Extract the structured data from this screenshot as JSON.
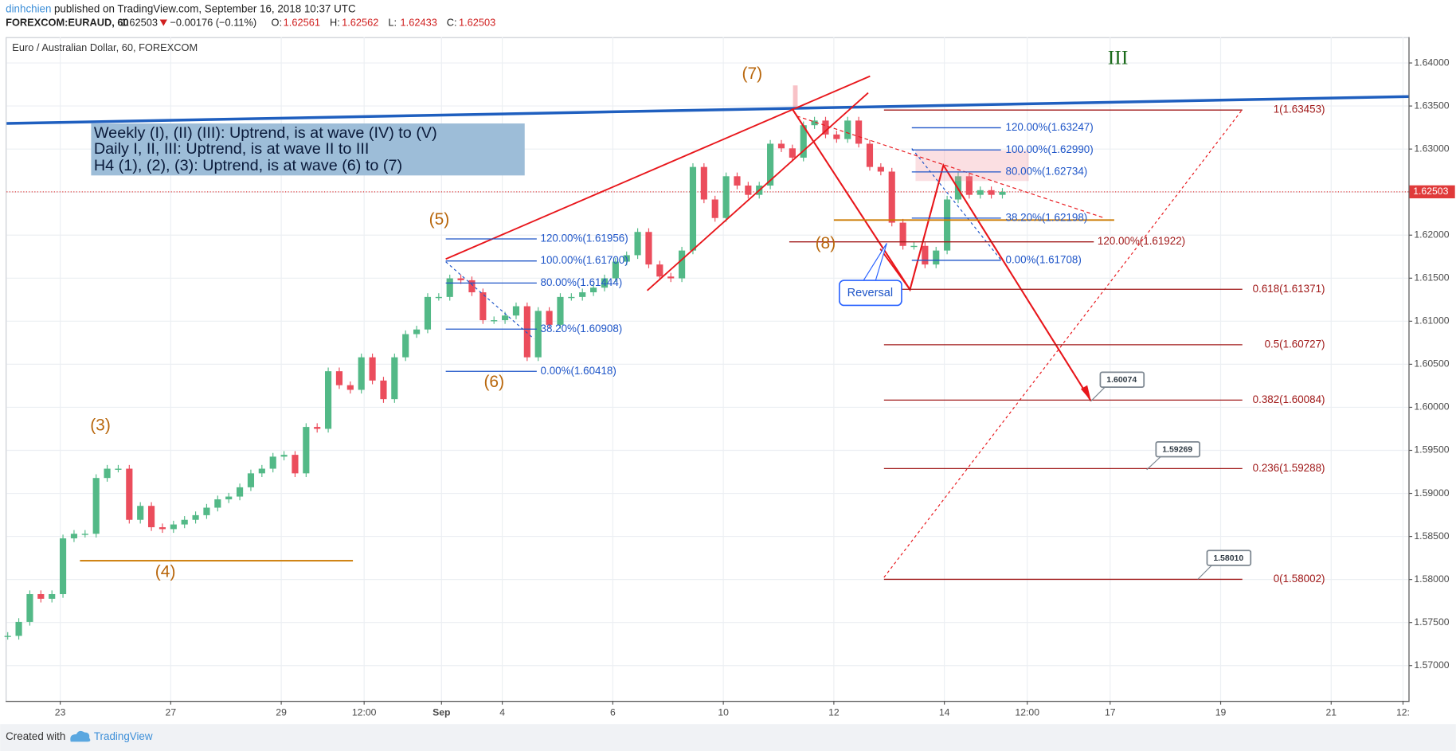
{
  "header": {
    "author": "dinhchien",
    "published": "published on TradingView.com, September 16, 2018 10:37 UTC",
    "symbol": "FOREXCOM:EURAUD, 60",
    "last": "1.62503",
    "change": "−0.00176 (−0.11%)",
    "ohlc": [
      {
        "label": "O:",
        "value": "1.62561"
      },
      {
        "label": "H:",
        "value": "1.62562"
      },
      {
        "label": "L:",
        "value": "1.62433"
      },
      {
        "label": "C:",
        "value": "1.62503"
      }
    ]
  },
  "chart_data": {
    "type": "candlestick",
    "title": "Euro / Australian Dollar, 60, FOREXCOM",
    "up_color": "#53b987",
    "down_color": "#eb4d5c",
    "grid": true,
    "x": [
      -0.95,
      -0.75,
      -0.55,
      -0.35,
      -0.15,
      0.05,
      0.25,
      0.45,
      0.65,
      0.85,
      1.05,
      1.25,
      1.45,
      1.65,
      1.85,
      2.05,
      2.25,
      2.45,
      2.65,
      2.85,
      3.05,
      3.25,
      3.45,
      3.65,
      3.85,
      4.05,
      4.25,
      4.45,
      4.65,
      4.85,
      5.05,
      5.25,
      5.45,
      5.65,
      5.85,
      6.05,
      6.25,
      6.45,
      6.65,
      6.85,
      7.05,
      7.25,
      7.45,
      7.65,
      7.85,
      8.05,
      8.25,
      8.45,
      8.65,
      8.85,
      9.05,
      9.25,
      9.45,
      9.65,
      9.85,
      10.05,
      10.25,
      10.45,
      10.65,
      10.85,
      11.05,
      11.25,
      11.45,
      11.65,
      11.85,
      12.05,
      12.25,
      12.45,
      12.65,
      12.85,
      13.05,
      13.25,
      13.45,
      13.65,
      13.85,
      14.05,
      14.25,
      14.45,
      14.65,
      14.85,
      15.05,
      15.25,
      15.45,
      15.65,
      15.85,
      16.05,
      16.25,
      16.45,
      16.65,
      16.85,
      17.05
    ],
    "values": [
      1.57345,
      1.57507,
      1.5783,
      1.57776,
      1.5783,
      1.58478,
      1.58531,
      1.58531,
      1.59179,
      1.59287,
      1.59287,
      1.58693,
      1.58855,
      1.58607,
      1.58585,
      1.58639,
      1.58693,
      1.58747,
      1.58834,
      1.58931,
      1.58963,
      1.59071,
      1.59233,
      1.59287,
      1.59427,
      1.59448,
      1.59233,
      1.59772,
      1.5975,
      1.60419,
      1.60257,
      1.60203,
      1.60581,
      1.60311,
      1.60095,
      1.60581,
      1.6085,
      1.60904,
      1.61282,
      1.61282,
      1.61498,
      1.61476,
      1.61336,
      1.61012,
      1.61012,
      1.61066,
      1.61174,
      1.60581,
      1.6112,
      1.60958,
      1.61282,
      1.61282,
      1.61336,
      1.6139,
      1.61498,
      1.61692,
      1.61767,
      1.62037,
      1.61659,
      1.61519,
      1.61498,
      1.61821,
      1.62792,
      1.62414,
      1.62199,
      1.62684,
      1.62576,
      1.62468,
      1.62576,
      1.63062,
      1.63008,
      1.629,
      1.63277,
      1.63331,
      1.63169,
      1.63116,
      1.63331,
      1.63062,
      1.62792,
      1.62738,
      1.62145,
      1.61875,
      1.61875,
      1.61659,
      1.61821,
      1.62414,
      1.62684,
      1.62468,
      1.62522,
      1.62468,
      1.62503
    ],
    "xlim": [
      -0.97,
      24.4
    ],
    "ylim": [
      1.5659,
      1.643
    ],
    "xticks": [
      {
        "value": 0,
        "label": "23"
      },
      {
        "value": 2,
        "label": "27"
      },
      {
        "value": 4,
        "label": "29"
      },
      {
        "value": 5.5,
        "label": "12:00"
      },
      {
        "value": 6.9,
        "label": "Sep"
      },
      {
        "value": 8,
        "label": "4"
      },
      {
        "value": 10,
        "label": "6"
      },
      {
        "value": 12,
        "label": "10"
      },
      {
        "value": 14,
        "label": "12"
      },
      {
        "value": 16,
        "label": "14"
      },
      {
        "value": 17.5,
        "label": "12:00"
      },
      {
        "value": 19,
        "label": "17"
      },
      {
        "value": 21,
        "label": "19"
      },
      {
        "value": 23,
        "label": "21"
      },
      {
        "value": 24.3,
        "label": "12:"
      }
    ],
    "yticks": [
      {
        "value": 1.57,
        "label": "1.57000"
      },
      {
        "value": 1.575,
        "label": "1.57500"
      },
      {
        "value": 1.58,
        "label": "1.58000"
      },
      {
        "value": 1.585,
        "label": "1.58500"
      },
      {
        "value": 1.59,
        "label": "1.59000"
      },
      {
        "value": 1.595,
        "label": "1.59500"
      },
      {
        "value": 1.6,
        "label": "1.60000"
      },
      {
        "value": 1.605,
        "label": "1.60500"
      },
      {
        "value": 1.61,
        "label": "1.61000"
      },
      {
        "value": 1.615,
        "label": "1.61500"
      },
      {
        "value": 1.62,
        "label": "1.62000"
      },
      {
        "value": 1.625,
        "label": "1.62500"
      },
      {
        "value": 1.63,
        "label": "1.63000"
      },
      {
        "value": 1.635,
        "label": "1.63500"
      },
      {
        "value": 1.64,
        "label": "1.64000"
      }
    ],
    "last_price": {
      "value": 1.62503,
      "label": "1.62503"
    },
    "annotations": {
      "note": [
        "Weekly (I), (II) (III): Uptrend, is at wave (IV) to (V)",
        "Daily I, II, III: Uptrend, is at wave II to III",
        "H4 (1), (2), (3): Uptrend, is at wave (6) to (7)"
      ],
      "waves": [
        "(3)",
        "(4)",
        "(5)",
        "(6)",
        "(7)",
        "(8)"
      ],
      "degree": "III",
      "reversal": "Reversal",
      "callouts": [
        "1.60074",
        "1.59269",
        "1.58010"
      ],
      "fib_left": [
        {
          "label": "120.00%(1.61956)",
          "value": 1.61956
        },
        {
          "label": "100.00%(1.61700)",
          "value": 1.617
        },
        {
          "label": "80.00%(1.61444)",
          "value": 1.61444
        },
        {
          "label": "38.20%(1.60908)",
          "value": 1.60908
        },
        {
          "label": "0.00%(1.60418)",
          "value": 1.60418
        }
      ],
      "fib_right": [
        {
          "label": "120.00%(1.63247)",
          "value": 1.63247
        },
        {
          "label": "100.00%(1.62990)",
          "value": 1.6299
        },
        {
          "label": "80.00%(1.62734)",
          "value": 1.62734
        },
        {
          "label": "38.20%(1.62198)",
          "value": 1.62198
        },
        {
          "label": "0.00%(1.61708)",
          "value": 1.61708
        }
      ],
      "fib_ext": [
        {
          "label": "120.00%(1.61922)",
          "value": 1.61922
        }
      ],
      "fib_target": [
        {
          "label": "1(1.63453)",
          "value": 1.63453
        },
        {
          "label": "0.618(1.61371)",
          "value": 1.61371
        },
        {
          "label": "0.5(1.60727)",
          "value": 1.60727
        },
        {
          "label": "0.382(1.60084)",
          "value": 1.60084
        },
        {
          "label": "0.236(1.59288)",
          "value": 1.59288
        },
        {
          "label": "0(1.58002)",
          "value": 1.58002
        }
      ]
    }
  },
  "footer": {
    "created": "Created with",
    "brand": "TradingView"
  }
}
